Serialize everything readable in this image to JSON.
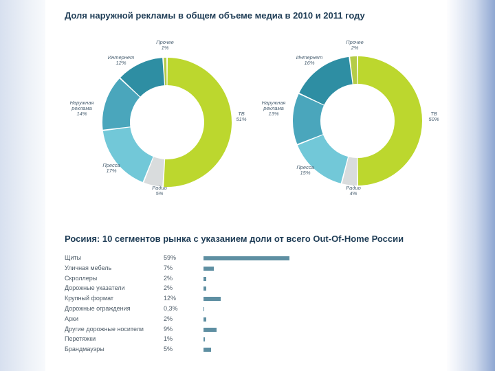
{
  "chart_data": [
    {
      "type": "pie",
      "title": "Доля наружной рекламы в общем объеме медиа в 2010 и 2011 году",
      "year": "2010",
      "slices": [
        {
          "name": "ТВ",
          "value": 51,
          "label": "51%",
          "color": "#bcd72e"
        },
        {
          "name": "Радио",
          "value": 5,
          "label": "5%",
          "color": "#d9dcdd"
        },
        {
          "name": "Пресса",
          "value": 17,
          "label": "17%",
          "color": "#72c8d8"
        },
        {
          "name": "Наружная реклама",
          "value": 14,
          "label": "14%",
          "color": "#4aa6bc"
        },
        {
          "name": "Интернет",
          "value": 12,
          "label": "12%",
          "color": "#2e8ea3"
        },
        {
          "name": "Прочее",
          "value": 1,
          "label": "1%",
          "color": "#b5cc48"
        }
      ]
    },
    {
      "type": "pie",
      "year": "2011",
      "slices": [
        {
          "name": "ТВ",
          "value": 50,
          "label": "50%",
          "color": "#bcd72e"
        },
        {
          "name": "Радио",
          "value": 4,
          "label": "4%",
          "color": "#d9dcdd"
        },
        {
          "name": "Пресса",
          "value": 15,
          "label": "15%",
          "color": "#72c8d8"
        },
        {
          "name": "Наружная реклама",
          "value": 13,
          "label": "13%",
          "color": "#4aa6bc"
        },
        {
          "name": "Интернет",
          "value": 16,
          "label": "16%",
          "color": "#2e8ea3"
        },
        {
          "name": "Прочее",
          "value": 2,
          "label": "2%",
          "color": "#b5cc48"
        }
      ]
    },
    {
      "type": "bar",
      "orientation": "horizontal",
      "title": "Росиия: 10 сегментов рынка с указанием доли от всего Out-Of-Home России",
      "categories": [
        "Щиты",
        "Уличная мебель",
        "Скроллеры",
        "Дорожные указатели",
        "Крупный формат",
        "Дорожные ограждения",
        "Арки",
        "Другие дорожные носители",
        "Перетяжки",
        "Брандмауэры"
      ],
      "values": [
        59,
        7,
        2,
        2,
        12,
        0.3,
        2,
        9,
        1,
        5
      ],
      "value_labels": [
        "59%",
        "7%",
        "2%",
        "2%",
        "12%",
        "0,3%",
        "2%",
        "9%",
        "1%",
        "5%"
      ],
      "bar_color": "#5e8fa2"
    }
  ]
}
